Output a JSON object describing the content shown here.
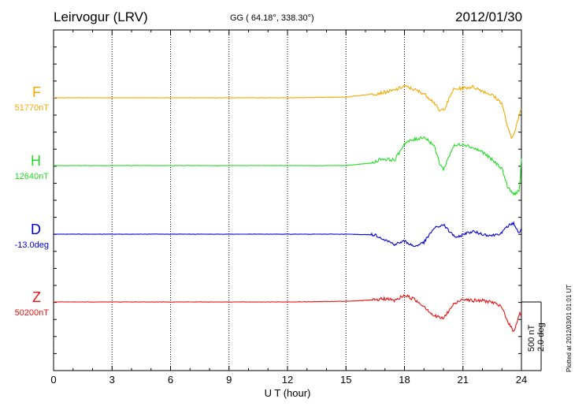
{
  "header": {
    "station": "Leirvogur (LRV)",
    "coords": "GG ( 64.18°, 338.30°)",
    "date": "2012/01/30"
  },
  "xaxis": {
    "label": "U T (hour)",
    "ticks": [
      "0",
      "3",
      "6",
      "9",
      "12",
      "15",
      "18",
      "21",
      "24"
    ]
  },
  "scale": {
    "nt": "500 nT",
    "deg": "2.0 deg"
  },
  "footer": {
    "plotted": "Plotted at 2012/03/01 01:01 UT"
  },
  "chart_data": {
    "type": "line",
    "xlim": [
      0,
      24
    ],
    "xlabel": "U T (hour)",
    "grid": "vertical dotted every 3 hours",
    "series": [
      {
        "name": "F",
        "baseline": "51770nT",
        "color": "#f5a800",
        "unit": "nT",
        "x": [
          0,
          3,
          6,
          9,
          12,
          15,
          16.5,
          17,
          17.5,
          18,
          18.5,
          19,
          19.5,
          19.8,
          20.1,
          20.5,
          21,
          21.5,
          22,
          22.5,
          23,
          23.3,
          23.5,
          23.7,
          24
        ],
        "y": [
          0,
          0,
          0,
          0,
          0,
          5,
          30,
          40,
          55,
          85,
          60,
          30,
          -30,
          -100,
          -70,
          60,
          70,
          80,
          50,
          20,
          -40,
          -220,
          -300,
          -220,
          -80
        ]
      },
      {
        "name": "H",
        "baseline": "12640nT",
        "color": "#22dd22",
        "unit": "nT",
        "x": [
          0,
          3,
          6,
          9,
          12,
          15,
          16.4,
          16.8,
          17.5,
          18,
          18.3,
          19,
          19.5,
          19.8,
          20,
          20.2,
          20.5,
          21,
          21.5,
          22,
          22.5,
          23,
          23.3,
          23.6,
          23.9,
          24
        ],
        "y": [
          0,
          0,
          0,
          0,
          0,
          0,
          20,
          50,
          40,
          160,
          180,
          210,
          150,
          20,
          -30,
          40,
          140,
          160,
          130,
          100,
          40,
          -20,
          -160,
          -210,
          -180,
          40
        ]
      },
      {
        "name": "D",
        "baseline": "-13.0deg",
        "color": "#0000dd",
        "unit": "deg",
        "x": [
          0,
          3,
          6,
          9,
          12,
          15,
          16.5,
          17,
          17.5,
          18,
          18.5,
          19,
          19.5,
          20,
          20.3,
          20.7,
          21,
          21.5,
          22,
          22.5,
          23,
          23.3,
          23.6,
          23.9,
          24
        ],
        "y": [
          0,
          0,
          0,
          0,
          0,
          0,
          -0.02,
          -0.16,
          -0.3,
          -0.2,
          -0.36,
          -0.24,
          0.16,
          0.28,
          0.08,
          -0.12,
          0.0,
          0.08,
          0.0,
          -0.04,
          0.04,
          0.24,
          0.32,
          0.0,
          0.16
        ]
      },
      {
        "name": "Z",
        "baseline": "50200nT",
        "color": "#ee1111",
        "unit": "nT",
        "x": [
          0,
          3,
          6,
          9,
          12,
          15,
          16.5,
          17,
          17.5,
          18,
          18.5,
          19,
          19.5,
          20,
          20.5,
          21,
          21.5,
          22,
          22.5,
          23,
          23.3,
          23.6,
          23.9,
          24
        ],
        "y": [
          0,
          0,
          0,
          0,
          0,
          5,
          15,
          25,
          10,
          50,
          20,
          -30,
          -100,
          -120,
          -20,
          25,
          10,
          10,
          0,
          -40,
          -140,
          -220,
          -80,
          -100
        ]
      }
    ]
  }
}
